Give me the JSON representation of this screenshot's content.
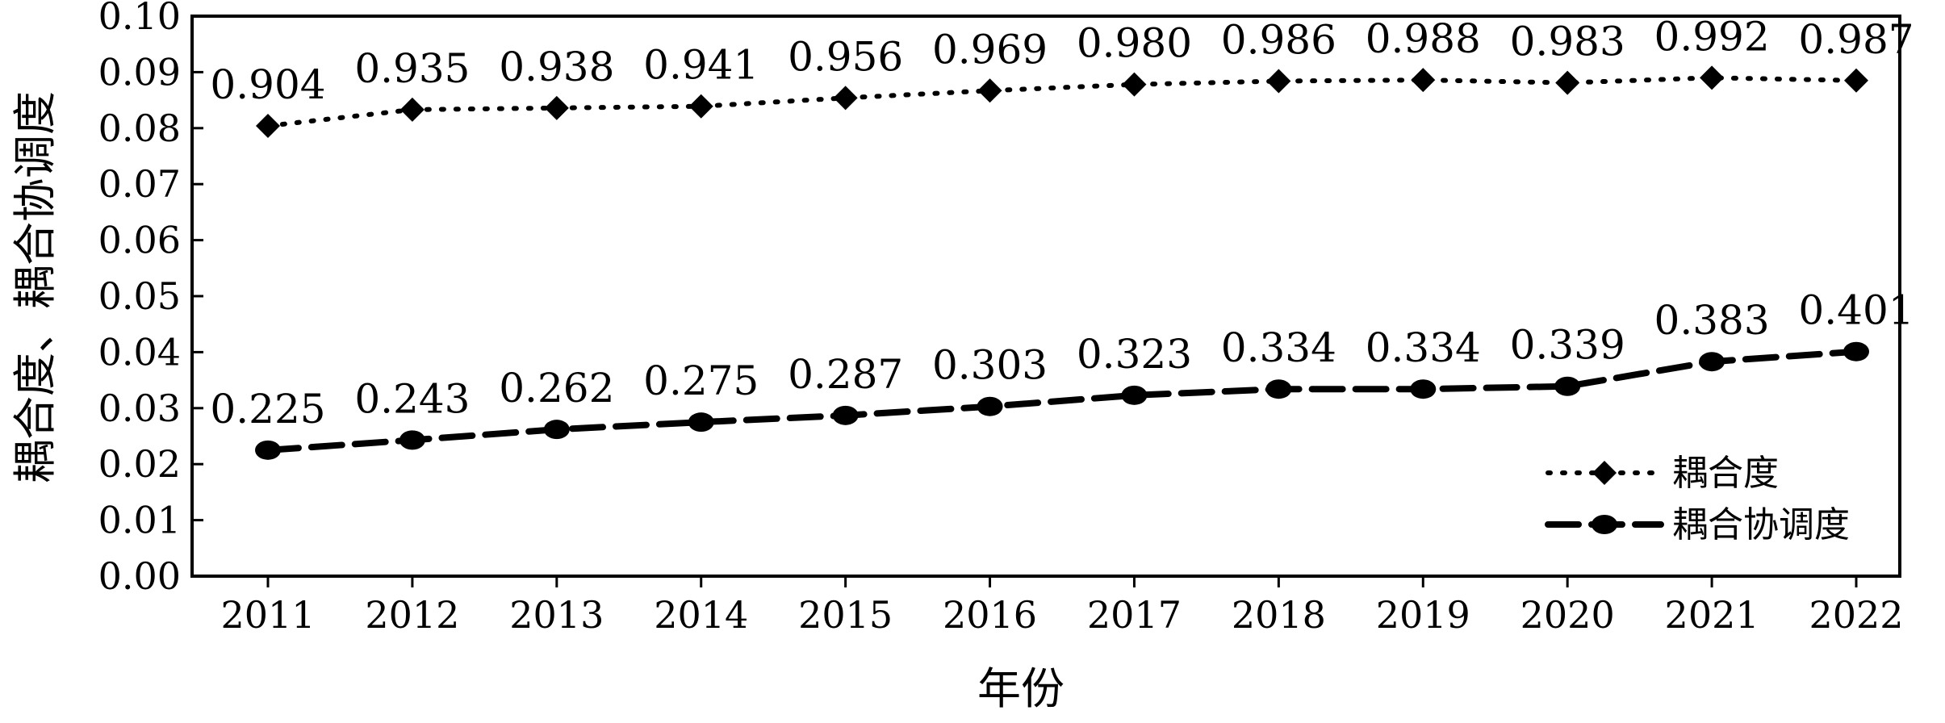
{
  "chart_data": {
    "type": "line",
    "xlabel": "年份",
    "ylabel": "耦合度、耦合协调度",
    "categories": [
      "2011",
      "2012",
      "2013",
      "2014",
      "2015",
      "2016",
      "2017",
      "2018",
      "2019",
      "2020",
      "2021",
      "2022"
    ],
    "yticks": [
      "0.00",
      "0.01",
      "0.02",
      "0.03",
      "0.04",
      "0.05",
      "0.06",
      "0.07",
      "0.08",
      "0.09",
      "0.10"
    ],
    "ylim": [
      0,
      0.1
    ],
    "grid": false,
    "legend_position": "bottom-right",
    "series": [
      {
        "name": "耦合度",
        "style": "dotted",
        "marker": "diamond",
        "plot_values": [
          0.0804,
          0.0833,
          0.0836,
          0.0839,
          0.0854,
          0.0867,
          0.0878,
          0.0884,
          0.0886,
          0.0881,
          0.089,
          0.0885
        ],
        "labels": [
          "0.904",
          "0.935",
          "0.938",
          "0.941",
          "0.956",
          "0.969",
          "0.980",
          "0.986",
          "0.988",
          "0.983",
          "0.992",
          "0.987"
        ]
      },
      {
        "name": "耦合协调度",
        "style": "dashed",
        "marker": "circle",
        "plot_values": [
          0.0225,
          0.0243,
          0.0262,
          0.0275,
          0.0287,
          0.0303,
          0.0323,
          0.0334,
          0.0334,
          0.0339,
          0.0383,
          0.0401
        ],
        "labels": [
          "0.225",
          "0.243",
          "0.262",
          "0.275",
          "0.287",
          "0.303",
          "0.323",
          "0.334",
          "0.334",
          "0.339",
          "0.383",
          "0.401"
        ]
      }
    ]
  },
  "colors": {
    "line": "#000000",
    "background": "#ffffff"
  }
}
